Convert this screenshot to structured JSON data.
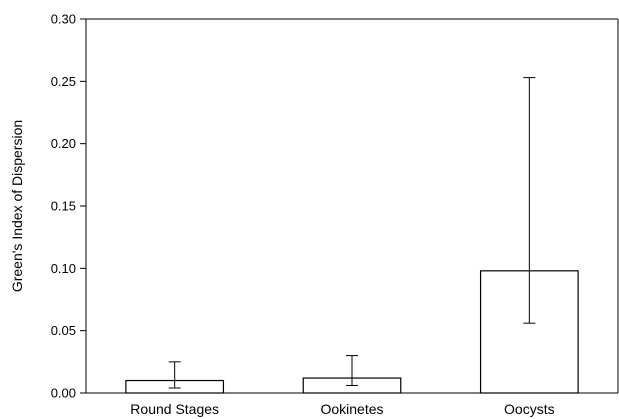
{
  "chart_data": {
    "type": "bar",
    "title": "",
    "xlabel": "",
    "ylabel": "Green's Index of Dispersion",
    "categories": [
      "Round Stages",
      "Ookinetes",
      "Oocysts"
    ],
    "values": [
      0.01,
      0.012,
      0.098
    ],
    "error_low": [
      0.004,
      0.006,
      0.056
    ],
    "error_high": [
      0.025,
      0.03,
      0.253
    ],
    "ylim": [
      0,
      0.3
    ],
    "yticks": [
      "0.00",
      "0.05",
      "0.10",
      "0.15",
      "0.20",
      "0.25",
      "0.30"
    ],
    "grid": false,
    "legend": "none",
    "colors": {
      "bar_fill": "#ffffff",
      "bar_stroke": "#000000",
      "axis": "#000000"
    }
  }
}
